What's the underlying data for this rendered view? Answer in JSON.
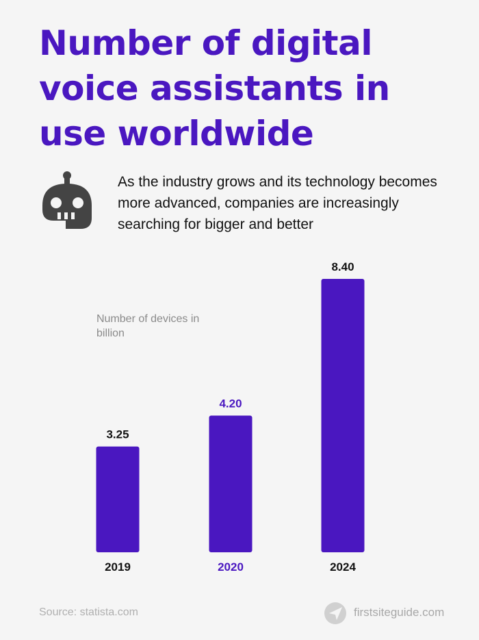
{
  "chart_data": {
    "type": "bar",
    "title": "Number of digital voice assistants in use worldwide",
    "subtitle": "As the industry grows and its technology becomes more advanced, companies are increasingly searching for bigger and better",
    "y_label": "Number of devices in billion",
    "categories": [
      "2019",
      "2020",
      "2024"
    ],
    "values": [
      3.25,
      4.2,
      8.4
    ],
    "value_labels": [
      "3.25",
      "4.20",
      "8.40"
    ],
    "color": "#4a17c0",
    "label_colors": [
      "#111111",
      "#4a17c0",
      "#111111"
    ],
    "ylim": [
      0,
      8.4
    ],
    "source": "Source: statista.com",
    "brand": "firstsiteguide.com"
  }
}
